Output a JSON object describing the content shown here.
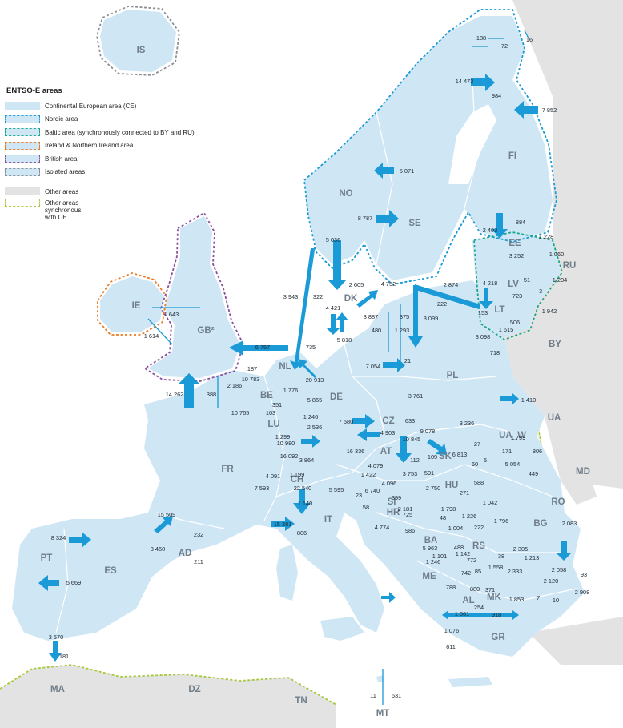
{
  "legend": {
    "title": "ENTSO-E areas",
    "items": [
      {
        "label": "Continental European area (CE)",
        "fill": "#cfe6f5",
        "border": "none"
      },
      {
        "label": "Nordic area",
        "fill": "#cfe6f5",
        "border": "#1a9ad6"
      },
      {
        "label": "Baltic area (synchronously connected to BY and RU)",
        "fill": "#cfe6f5",
        "border": "#1aa88a"
      },
      {
        "label": "Ireland & Northern Ireland area",
        "fill": "#cfe6f5",
        "border": "#ee7a22"
      },
      {
        "label": "British area",
        "fill": "#cfe6f5",
        "border": "#8a4fa0"
      },
      {
        "label": "Isolated areas",
        "fill": "#cfe6f5",
        "border": "#8a8f96"
      }
    ],
    "other_items": [
      {
        "label": "Other areas",
        "fill": "#e3e3e3",
        "border": "none"
      },
      {
        "label": "Other areas\nsynchronous\nwith CE",
        "fill": "#ffffff",
        "border": "#a6c83a"
      }
    ]
  },
  "colors": {
    "sea": "#ffffff",
    "entsoe_land": "#cfe6f5",
    "other_land": "#e3e3e3",
    "arrow": "#1a9ad6",
    "border_line": "#ffffff",
    "country_label": "#6f7e8a"
  },
  "countries": [
    "IS",
    "NO",
    "SE",
    "FI",
    "DK",
    "EE",
    "LV",
    "LT",
    "RU",
    "BY",
    "UA",
    "UA_W",
    "MD",
    "RO",
    "BG",
    "GR",
    "MK",
    "AL",
    "ME",
    "RS",
    "BA",
    "HR",
    "SI",
    "HU",
    "SK",
    "CZ",
    "AT",
    "IT",
    "CH",
    "FR",
    "LU",
    "BE",
    "NL",
    "DE",
    "PL",
    "GB²",
    "IE",
    "ES",
    "PT",
    "AD",
    "MA",
    "DZ",
    "TN",
    "MT"
  ],
  "flows": [
    "188",
    "72",
    "16",
    "14 473",
    "984",
    "7 852",
    "5 071",
    "8 787",
    "2 403",
    "884",
    "1 228",
    "1 060",
    "3 252",
    "51",
    "1 204",
    "5 036",
    "2 605",
    "4 752",
    "2 874",
    "222",
    "3 943",
    "322",
    "4 421",
    "5 818",
    "3 887",
    "480",
    "375",
    "3 099",
    "1 293",
    "4 218",
    "723",
    "3",
    "153",
    "1 942",
    "506",
    "1 615",
    "3 098",
    "718",
    "1 643",
    "1 614",
    "6 757",
    "735",
    "7 054",
    "21",
    "187",
    "10 783",
    "20 913",
    "2 186",
    "14 262",
    "388",
    "1 776",
    "10 765",
    "5 865",
    "351",
    "103",
    "1 246",
    "1 299",
    "2 536",
    "10 980",
    "3 761",
    "633",
    "1 410",
    "7 580",
    "4 903",
    "3 236",
    "27",
    "1 799",
    "171",
    "806",
    "449",
    "9 078",
    "10 845",
    "112",
    "109",
    "6 813",
    "60",
    "5",
    "5 054",
    "16 092",
    "16 336",
    "3 864",
    "4 079",
    "1 199",
    "4 091",
    "7 593",
    "22 540",
    "1 140",
    "5 595",
    "1 422",
    "4 096",
    "3 753",
    "591",
    "23",
    "6 740",
    "399",
    "2 750",
    "588",
    "58",
    "2 181",
    "271",
    "1 042",
    "725",
    "1 798",
    "48",
    "1 226",
    "1 796",
    "222",
    "15 381",
    "806",
    "4 774",
    "986",
    "1 004",
    "15 509",
    "3 460",
    "232",
    "211",
    "8 324",
    "5 669",
    "5 963",
    "488",
    "1 142",
    "1 101",
    "772",
    "1 246",
    "742",
    "85",
    "788",
    "880",
    "371",
    "2 305",
    "38",
    "1 213",
    "2 083",
    "1 558",
    "2 333",
    "2 058",
    "93",
    "2 120",
    "2 908",
    "7",
    "10",
    "1 853",
    "254",
    "1 061",
    "918",
    "1 076",
    "611",
    "3 570",
    "181",
    "11",
    "631"
  ]
}
